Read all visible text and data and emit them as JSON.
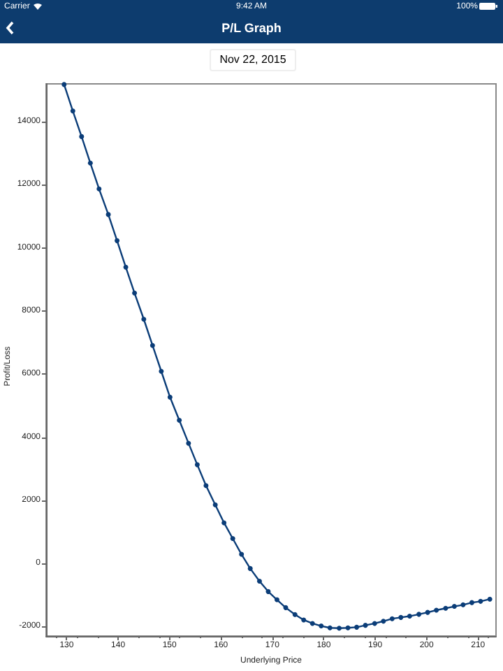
{
  "chart_data": {
    "type": "line",
    "title": "P/L Graph",
    "subtitle": "Nov 22, 2015",
    "xlabel": "Underlying Price",
    "ylabel": "Profit/Loss",
    "annotations": [
      "Carrier",
      "9:42 AM",
      "100%"
    ],
    "x": [
      129.5,
      131.2,
      132.9,
      134.6,
      136.3,
      138.1,
      139.8,
      141.5,
      143.2,
      145.0,
      146.7,
      148.4,
      150.1,
      151.9,
      153.7,
      155.4,
      157.1,
      158.9,
      160.6,
      162.3,
      164.0,
      165.7,
      167.5,
      169.2,
      170.9,
      172.6,
      174.4,
      176.1,
      177.8,
      179.5,
      181.2,
      183.0,
      184.7,
      186.4,
      188.1,
      189.9,
      191.6,
      193.3,
      195.0,
      196.7,
      198.5,
      200.2,
      201.9,
      203.7,
      205.4,
      207.1,
      208.8,
      210.5,
      212.3
    ],
    "series": [
      {
        "color": "#0b3d78",
        "values": [
          15180,
          14340,
          13530,
          12690,
          11870,
          11060,
          10230,
          9390,
          8570,
          7740,
          6910,
          6090,
          5270,
          4540,
          3810,
          3130,
          2470,
          1860,
          1290,
          790,
          290,
          -160,
          -560,
          -890,
          -1150,
          -1400,
          -1620,
          -1790,
          -1900,
          -1980,
          -2040,
          -2050,
          -2040,
          -2020,
          -1960,
          -1900,
          -1830,
          -1750,
          -1710,
          -1670,
          -1610,
          -1550,
          -1480,
          -1420,
          -1360,
          -1310,
          -1240,
          -1200,
          -1130
        ]
      }
    ],
    "xlim": [
      126,
      213.5
    ],
    "xticks": [
      130,
      140,
      150,
      160,
      170,
      180,
      190,
      200,
      210
    ],
    "ylim": [
      -2300,
      15200
    ],
    "yticks": [
      -2000,
      0,
      2000,
      4000,
      6000,
      8000,
      10000,
      12000,
      14000
    ],
    "grid": false,
    "marker": "circle",
    "line_style": "solid"
  }
}
